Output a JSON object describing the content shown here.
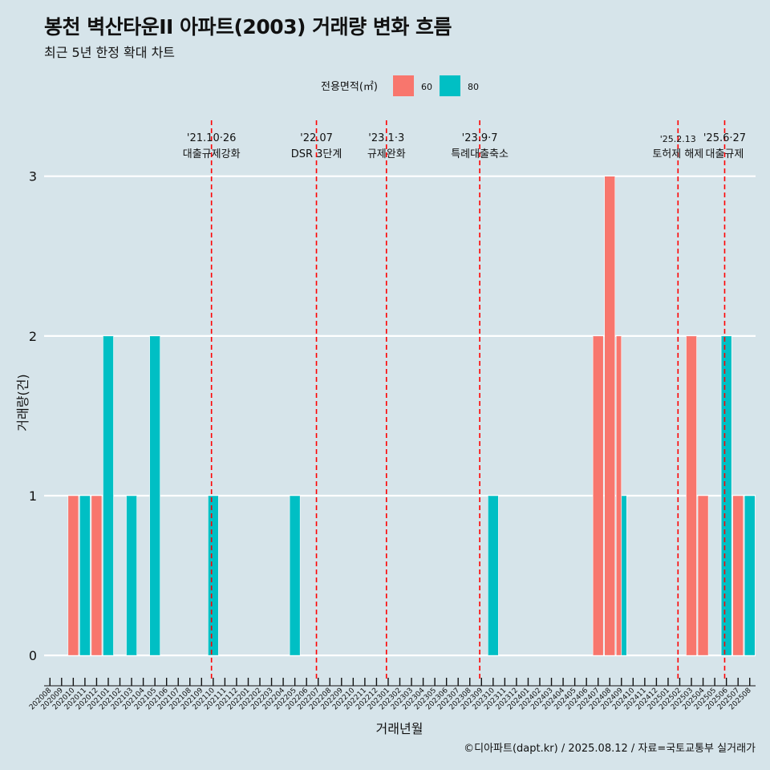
{
  "title": "봉천 벽산타운II 아파트(2003) 거래량 변화 흐름",
  "subtitle": "최근 5년 한정 확대 차트",
  "caption": "©디아파트(dapt.kr) / 2025.08.12 / 자료=국토교통부 실거래가",
  "chart_data": {
    "type": "bar",
    "title": "봉천 벽산타운II 아파트(2003) 거래량 변화 흐름",
    "subtitle": "최근 5년 한정 확대 차트",
    "xlabel": "거래년월",
    "ylabel": "거래량(건)",
    "ylim": [
      -0.14,
      3.35
    ],
    "yticks": [
      0,
      1,
      2,
      3
    ],
    "grid": "horizontal",
    "legend": {
      "title": "전용면적(㎡)",
      "position": "top"
    },
    "categories": [
      "202008",
      "202009",
      "202010",
      "202011",
      "202012",
      "202101",
      "202102",
      "202103",
      "202104",
      "202105",
      "202106",
      "202107",
      "202108",
      "202109",
      "202110",
      "202111",
      "202112",
      "202201",
      "202202",
      "202203",
      "202204",
      "202205",
      "202206",
      "202207",
      "202208",
      "202209",
      "202210",
      "202211",
      "202212",
      "202301",
      "202302",
      "202303",
      "202304",
      "202305",
      "202306",
      "202307",
      "202308",
      "202309",
      "202310",
      "202311",
      "202312",
      "202401",
      "202402",
      "202403",
      "202404",
      "202405",
      "202406",
      "202407",
      "202408",
      "202409",
      "202410",
      "202411",
      "202412",
      "202501",
      "202502",
      "202503",
      "202504",
      "202505",
      "202506",
      "202507",
      "202508"
    ],
    "series": [
      {
        "name": "60",
        "color": "#f8766d",
        "values": [
          0,
          0,
          1,
          0,
          1,
          0,
          0,
          0,
          0,
          0,
          0,
          0,
          0,
          0,
          0,
          0,
          0,
          0,
          0,
          0,
          0,
          0,
          0,
          0,
          0,
          0,
          0,
          0,
          0,
          0,
          0,
          0,
          0,
          0,
          0,
          0,
          0,
          0,
          0,
          0,
          0,
          0,
          0,
          0,
          0,
          0,
          0,
          2,
          3,
          2,
          0,
          0,
          0,
          0,
          0,
          2,
          1,
          0,
          0,
          1,
          0
        ]
      },
      {
        "name": "80",
        "color": "#00bfc4",
        "values": [
          0,
          0,
          0,
          1,
          0,
          2,
          0,
          1,
          0,
          2,
          0,
          0,
          0,
          0,
          1,
          0,
          0,
          0,
          0,
          0,
          0,
          1,
          0,
          0,
          0,
          0,
          0,
          0,
          0,
          0,
          0,
          0,
          0,
          0,
          0,
          0,
          0,
          0,
          1,
          0,
          0,
          0,
          0,
          0,
          0,
          0,
          0,
          0,
          0,
          1,
          0,
          0,
          0,
          0,
          0,
          0,
          0,
          0,
          2,
          0,
          1
        ]
      }
    ],
    "annotations": [
      {
        "x": "202110",
        "date": "'21.10·26",
        "label": "대출규제강화"
      },
      {
        "x": "202207",
        "date": "'22.07",
        "label": "DSR 3단계"
      },
      {
        "x": "202301",
        "date": "'23.1·3",
        "label": "규제완화"
      },
      {
        "x": "202309",
        "date": "'23.9·7",
        "label": "특례대출축소"
      },
      {
        "x": "202502",
        "date": "'25.2.13",
        "label": "토허제 해제"
      },
      {
        "x": "202506",
        "date": "'25.6·27",
        "label": "대출규제"
      }
    ],
    "annotation_line_color": "#ff0000"
  }
}
